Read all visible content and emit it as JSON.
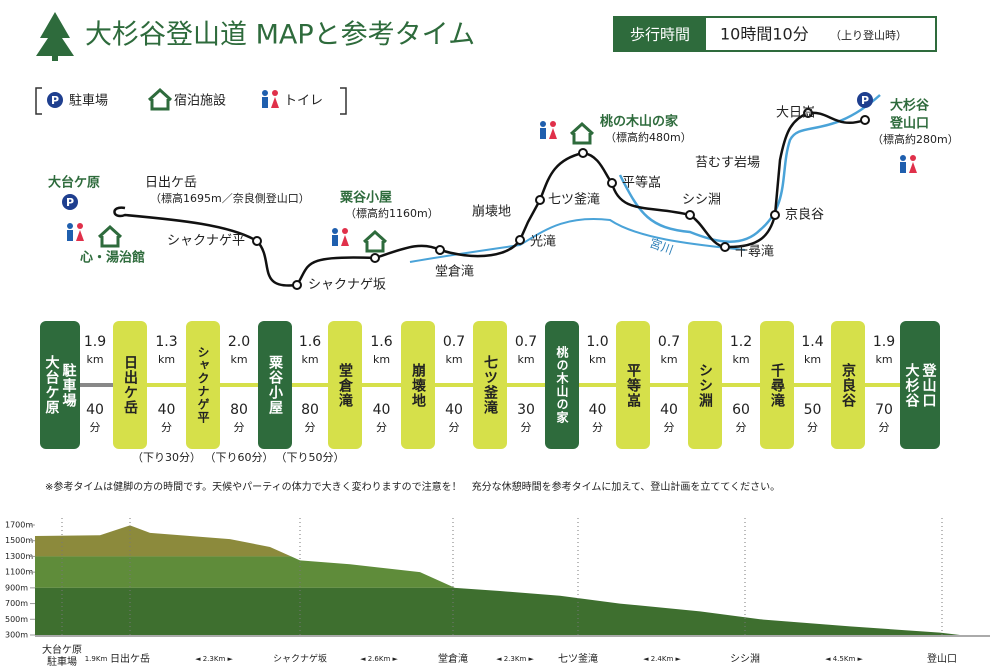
{
  "header": {
    "title": "大杉谷登山道 MAPと参考タイム",
    "walk_label": "歩行時間",
    "walk_time": "10時間10分",
    "walk_note": "（上り登山時）"
  },
  "legend": [
    "駐車場",
    "宿泊施設",
    "トイレ"
  ],
  "map": {
    "places": [
      {
        "name": "大台ケ原"
      },
      {
        "name": "心・湯治館"
      },
      {
        "name": "日出ケ岳",
        "sub": "（標高1695m／奈良側登山口）"
      },
      {
        "name": "シャクナゲ平"
      },
      {
        "name": "シャクナゲ坂"
      },
      {
        "name": "粟谷小屋",
        "sub": "（標高約1160m）"
      },
      {
        "name": "堂倉滝"
      },
      {
        "name": "光滝"
      },
      {
        "name": "崩壊地"
      },
      {
        "name": "七ツ釜滝"
      },
      {
        "name": "桃の木山の家",
        "sub": "（標高約480m）"
      },
      {
        "name": "平等嵓"
      },
      {
        "name": "シシ淵"
      },
      {
        "name": "苔むす岩場"
      },
      {
        "name": "京良谷"
      },
      {
        "name": "千尋滝"
      },
      {
        "name": "大日嵓"
      },
      {
        "name": "大杉谷",
        "sub": "登山口"
      },
      {
        "name": "（標高約280m）"
      }
    ],
    "river": "宮川"
  },
  "timeline": {
    "stations": [
      {
        "lines": [
          "大台ケ原",
          "駐車場"
        ]
      },
      {
        "lines": [
          "日出ケ岳"
        ]
      },
      {
        "lines": [
          "シャクナゲ平"
        ]
      },
      {
        "lines": [
          "粟谷小屋"
        ]
      },
      {
        "lines": [
          "堂倉滝"
        ]
      },
      {
        "lines": [
          "崩壊地"
        ]
      },
      {
        "lines": [
          "七ツ釜滝"
        ]
      },
      {
        "lines": [
          "桃の木山の家"
        ]
      },
      {
        "lines": [
          "平等嵓"
        ]
      },
      {
        "lines": [
          "シシ淵"
        ]
      },
      {
        "lines": [
          "千尋滝"
        ]
      },
      {
        "lines": [
          "京良谷"
        ]
      },
      {
        "lines": [
          "大杉谷",
          "登山口"
        ]
      }
    ],
    "segments": [
      {
        "distance": "1.9",
        "distance_unit": "km",
        "time": "40",
        "time_unit": "分"
      },
      {
        "distance": "1.3",
        "distance_unit": "km",
        "time": "40",
        "time_unit": "分",
        "down": "（下り30分）"
      },
      {
        "distance": "2.0",
        "distance_unit": "km",
        "time": "80",
        "time_unit": "分",
        "down": "（下り60分）"
      },
      {
        "distance": "1.6",
        "distance_unit": "km",
        "time": "80",
        "time_unit": "分",
        "down": "（下り50分）"
      },
      {
        "distance": "1.6",
        "distance_unit": "km",
        "time": "40",
        "time_unit": "分"
      },
      {
        "distance": "0.7",
        "distance_unit": "km",
        "time": "40",
        "time_unit": "分"
      },
      {
        "distance": "0.7",
        "distance_unit": "km",
        "time": "30",
        "time_unit": "分"
      },
      {
        "distance": "1.0",
        "distance_unit": "km",
        "time": "40",
        "time_unit": "分"
      },
      {
        "distance": "0.7",
        "distance_unit": "km",
        "time": "40",
        "time_unit": "分"
      },
      {
        "distance": "1.2",
        "distance_unit": "km",
        "time": "60",
        "time_unit": "分"
      },
      {
        "distance": "1.4",
        "distance_unit": "km",
        "time": "50",
        "time_unit": "分"
      },
      {
        "distance": "1.9",
        "distance_unit": "km",
        "time": "70",
        "time_unit": "分"
      }
    ]
  },
  "note": "※参考タイムは健脚の方の時間です。天候やパーティの体力で大きく変わりますので注意を！　充分な休憩時間を参考タイムに加えて、登山計画を立ててください。",
  "profile": {
    "yticks": [
      "1700m",
      "1500m",
      "1300m",
      "1100m",
      "900m",
      "700m",
      "500m",
      "300m"
    ],
    "labels": [
      "大台ケ原",
      "駐車場",
      "1.9Km",
      "日出ケ岳",
      "◄ 2.3Km ►",
      "シャクナゲ坂",
      "◄ 2.6Km ►",
      "堂倉滝",
      "◄ 2.3Km ►",
      "七ツ釜滝",
      "◄ 2.4Km ►",
      "シシ淵",
      "◄ 4.5Km ►",
      "登山口"
    ]
  }
}
